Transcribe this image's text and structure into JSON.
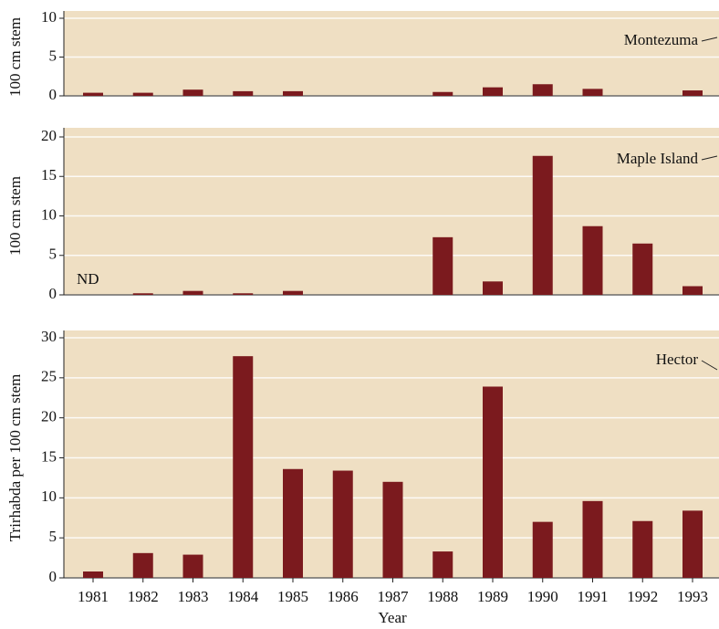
{
  "chart_data": [
    {
      "type": "bar",
      "y_label": "100 cm stem",
      "annotation": "Montezuma",
      "values": [
        0.4,
        0.4,
        0.8,
        0.6,
        0.6,
        null,
        null,
        0.5,
        1.1,
        1.5,
        0.9,
        null,
        0.7
      ],
      "color": "#7b1a1e",
      "ylim": [
        0,
        10
      ],
      "yticks": [
        0,
        5,
        10
      ],
      "grid": true
    },
    {
      "type": "bar",
      "y_label": "100 cm stem",
      "annotation": "Maple Island",
      "note": "ND",
      "values": [
        null,
        0.2,
        0.5,
        0.2,
        0.5,
        null,
        null,
        7.3,
        1.7,
        17.6,
        8.7,
        6.5,
        1.1
      ],
      "color": "#7b1a1e",
      "ylim": [
        0,
        20
      ],
      "yticks": [
        0,
        5,
        10,
        15,
        20
      ],
      "grid": true
    },
    {
      "type": "bar",
      "y_label": "Trirhabda per 100 cm stem",
      "annotation": "Hector",
      "x_label": "Year",
      "categories": [
        "1981",
        "1982",
        "1983",
        "1984",
        "1985",
        "1986",
        "1987",
        "1988",
        "1989",
        "1990",
        "1991",
        "1992",
        "1993"
      ],
      "values": [
        0.8,
        3.1,
        2.9,
        27.7,
        13.6,
        13.4,
        12.0,
        3.3,
        23.9,
        7.0,
        9.6,
        7.1,
        8.4
      ],
      "color": "#7b1a1e",
      "ylim": [
        0,
        30
      ],
      "yticks": [
        0,
        5,
        10,
        15,
        20,
        25,
        30
      ],
      "grid": true
    }
  ]
}
